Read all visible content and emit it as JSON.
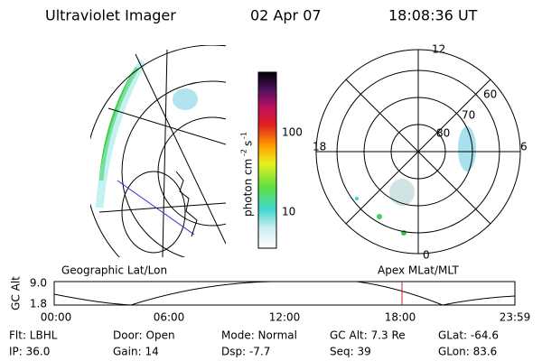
{
  "header": {
    "title": "Ultraviolet Imager",
    "date": "02 Apr 07",
    "time": "18:08:36 UT"
  },
  "colorbar": {
    "label": "photon cm",
    "exponent_1": "-2",
    "label_2": "s",
    "exponent_2": "-1",
    "ticks": [
      "100",
      "10"
    ]
  },
  "polar_plot": {
    "mlt_labels": [
      "12",
      "18",
      "6",
      "0"
    ],
    "lat_labels": [
      "80",
      "70",
      "60"
    ]
  },
  "timeline": {
    "left_label": "Geographic Lat/Lon",
    "right_label": "Apex MLat/MLT",
    "axis_label": "GC Alt",
    "y_labels": [
      "9.0",
      "1.8"
    ],
    "time_labels": [
      "00:00",
      "06:00",
      "12:00",
      "18:00",
      "23:59"
    ]
  },
  "footer": {
    "rows": [
      [
        "Flt: LBHL",
        "Door: Open",
        "Mode: Normal",
        "GC Alt: 7.3 Re",
        "GLat: -64.6"
      ],
      [
        "IP: 36.0",
        "Gain: 14",
        "Dsp: -7.7",
        "Seq: 39",
        "GLon: 83.6"
      ]
    ]
  }
}
